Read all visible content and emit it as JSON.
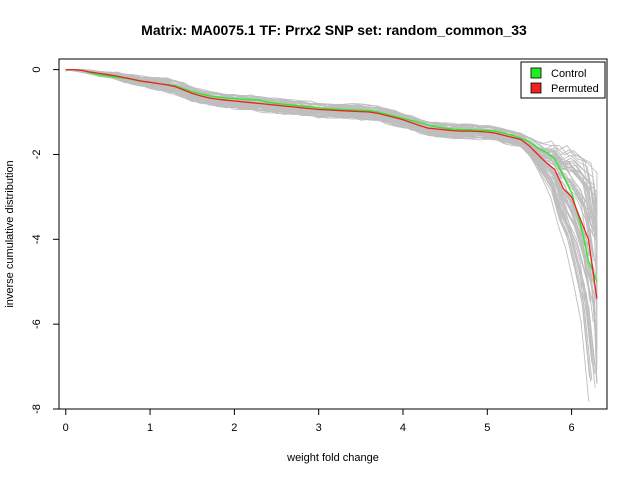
{
  "chart_data": {
    "type": "line",
    "title": "Matrix: MA0075.1 TF: Prrx2 SNP set: random_common_33",
    "xlabel": "weight fold change",
    "ylabel": "inverse cumulative distribution",
    "xlim": [
      -0.08,
      6.42
    ],
    "ylim": [
      -8.0,
      0.25
    ],
    "xticks": [
      0,
      1,
      2,
      3,
      4,
      5,
      6
    ],
    "yticks": [
      0,
      -2,
      -4,
      -6,
      -8
    ],
    "grid": false,
    "legend_position": "top-right",
    "legend": [
      {
        "label": "Control",
        "color": "#22ee22"
      },
      {
        "label": "Permuted",
        "color": "#ee2222"
      }
    ],
    "colors": {
      "background_series": "#bebebe",
      "control": "#22ee22",
      "permuted": "#ee2222"
    },
    "series": [
      {
        "name": "Control",
        "color": "#22ee22",
        "x": [
          0,
          0.1,
          0.2,
          0.3,
          0.4,
          0.5,
          0.6,
          0.7,
          0.8,
          0.9,
          1.0,
          1.1,
          1.2,
          1.3,
          1.4,
          1.5,
          1.6,
          1.7,
          1.8,
          1.9,
          2.0,
          2.1,
          2.2,
          2.3,
          2.4,
          2.5,
          2.6,
          2.7,
          2.8,
          2.9,
          3.0,
          3.1,
          3.2,
          3.3,
          3.4,
          3.5,
          3.6,
          3.7,
          3.8,
          3.9,
          4.0,
          4.1,
          4.2,
          4.3,
          4.4,
          4.5,
          4.6,
          4.7,
          4.8,
          4.9,
          5.0,
          5.1,
          5.2,
          5.3,
          5.4,
          5.5,
          5.6,
          5.7,
          5.8,
          5.9,
          6.0,
          6.1,
          6.2,
          6.3
        ],
        "y": [
          0,
          0,
          -0.02,
          -0.08,
          -0.12,
          -0.15,
          -0.18,
          -0.2,
          -0.24,
          -0.28,
          -0.3,
          -0.33,
          -0.35,
          -0.38,
          -0.45,
          -0.52,
          -0.57,
          -0.62,
          -0.65,
          -0.67,
          -0.68,
          -0.7,
          -0.71,
          -0.72,
          -0.77,
          -0.8,
          -0.82,
          -0.84,
          -0.86,
          -0.88,
          -0.9,
          -0.92,
          -0.93,
          -0.94,
          -0.95,
          -0.96,
          -0.97,
          -1.0,
          -1.05,
          -1.1,
          -1.15,
          -1.2,
          -1.25,
          -1.3,
          -1.35,
          -1.38,
          -1.4,
          -1.42,
          -1.42,
          -1.43,
          -1.43,
          -1.45,
          -1.5,
          -1.55,
          -1.62,
          -1.7,
          -1.85,
          -1.95,
          -2.1,
          -2.5,
          -2.9,
          -3.6,
          -4.5,
          -5.0
        ]
      },
      {
        "name": "Permuted",
        "color": "#ee2222",
        "x": [
          0,
          0.1,
          0.2,
          0.3,
          0.4,
          0.5,
          0.6,
          0.7,
          0.8,
          0.9,
          1.0,
          1.1,
          1.2,
          1.3,
          1.4,
          1.5,
          1.6,
          1.7,
          1.8,
          1.9,
          2.0,
          2.1,
          2.2,
          2.3,
          2.4,
          2.5,
          2.6,
          2.7,
          2.8,
          2.9,
          3.0,
          3.1,
          3.2,
          3.3,
          3.4,
          3.5,
          3.6,
          3.7,
          3.8,
          3.9,
          4.0,
          4.1,
          4.2,
          4.3,
          4.4,
          4.5,
          4.6,
          4.7,
          4.8,
          4.9,
          5.0,
          5.1,
          5.2,
          5.3,
          5.4,
          5.5,
          5.6,
          5.7,
          5.8,
          5.9,
          6.0,
          6.1,
          6.2,
          6.3
        ],
        "y": [
          0,
          0,
          -0.02,
          -0.06,
          -0.09,
          -0.12,
          -0.15,
          -0.19,
          -0.23,
          -0.27,
          -0.3,
          -0.33,
          -0.36,
          -0.4,
          -0.48,
          -0.56,
          -0.62,
          -0.67,
          -0.7,
          -0.72,
          -0.74,
          -0.76,
          -0.78,
          -0.8,
          -0.82,
          -0.84,
          -0.86,
          -0.88,
          -0.9,
          -0.92,
          -0.94,
          -0.95,
          -0.96,
          -0.97,
          -0.98,
          -0.99,
          -1.0,
          -1.03,
          -1.08,
          -1.13,
          -1.18,
          -1.25,
          -1.32,
          -1.38,
          -1.4,
          -1.42,
          -1.44,
          -1.45,
          -1.45,
          -1.46,
          -1.47,
          -1.5,
          -1.55,
          -1.6,
          -1.65,
          -1.8,
          -2.0,
          -2.2,
          -2.35,
          -2.8,
          -3.0,
          -3.5,
          -4.0,
          -5.4
        ]
      }
    ],
    "permutation_lines": 60
  }
}
